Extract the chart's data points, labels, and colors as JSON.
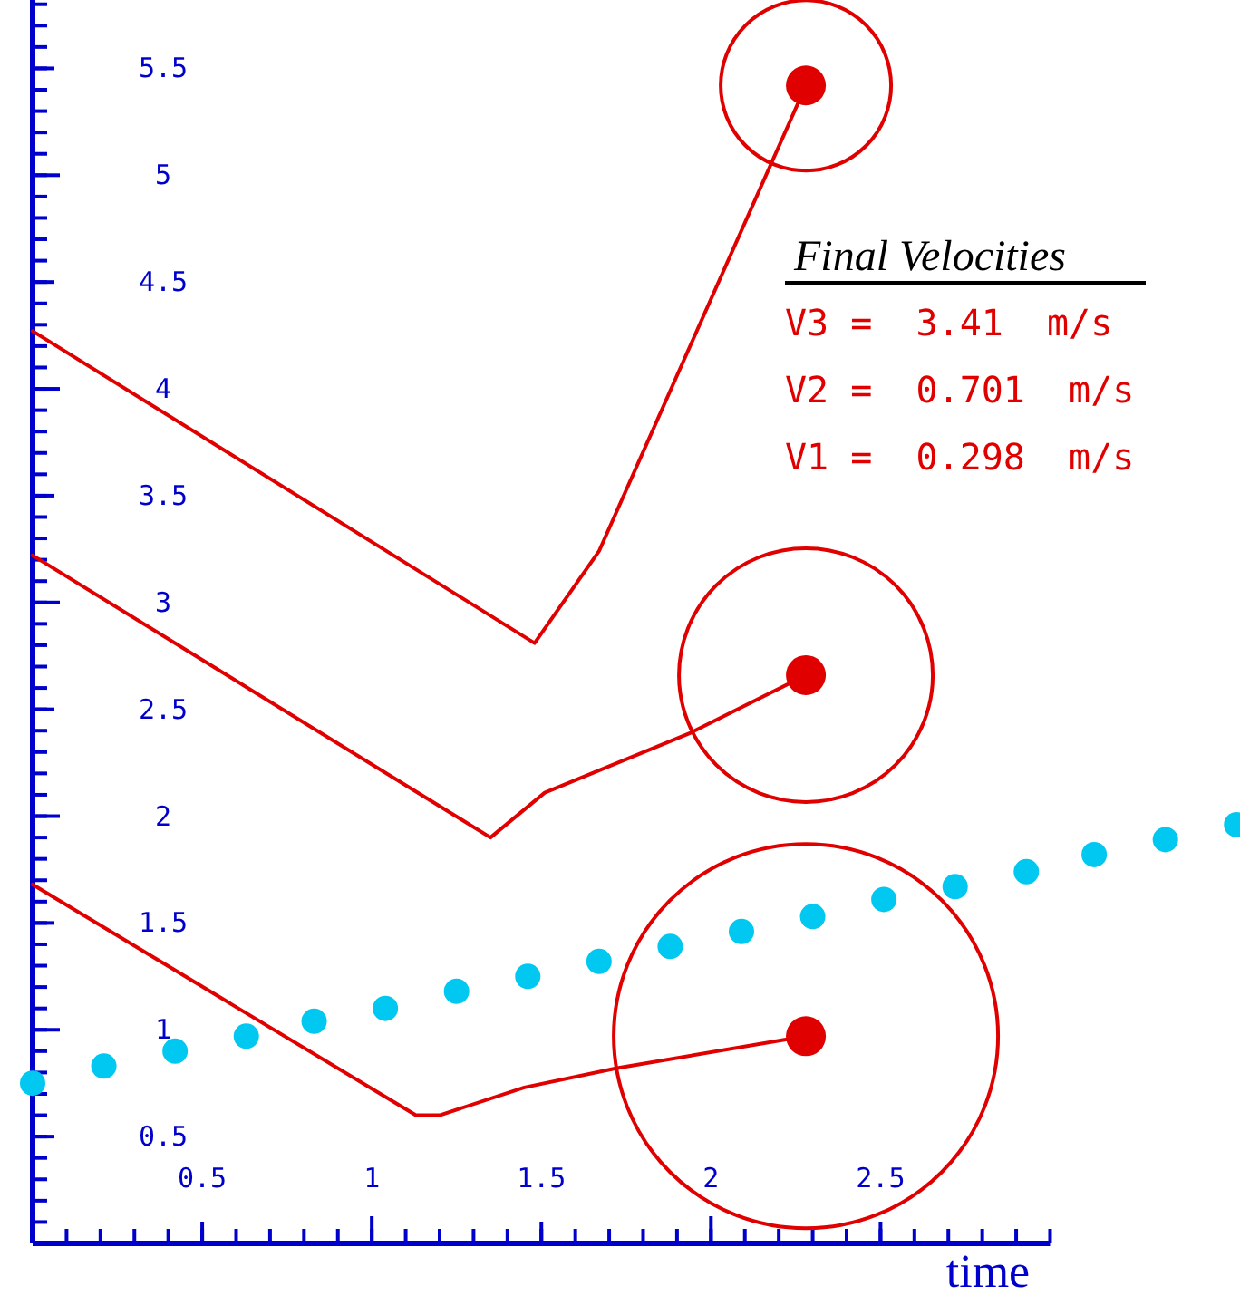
{
  "chart_data": {
    "type": "line",
    "xlabel": "time",
    "xlim": [
      0,
      3.56
    ],
    "ylim": [
      0,
      5.82
    ],
    "xticks": [
      {
        "value": 0.5,
        "label": "0.5"
      },
      1,
      {
        "value": 1.5,
        "label": "1.5"
      },
      2,
      {
        "value": 2.5,
        "label": "2.5"
      }
    ],
    "yticks": [
      {
        "value": 0.5,
        "label": "0.5"
      },
      1,
      {
        "value": 1.5,
        "label": "1.5"
      },
      2,
      {
        "value": 2.5,
        "label": "2.5"
      },
      3,
      {
        "value": 3.5,
        "label": "3.5"
      },
      4,
      {
        "value": 4.5,
        "label": "4.5"
      },
      5,
      {
        "value": 5.5,
        "label": "5.5"
      }
    ],
    "grid": false,
    "marker": "none",
    "line_style": "solid",
    "annotations": [
      "Final Velocities",
      "V3 =  3.41  m/s",
      "V2 =  0.701  m/s",
      "V1 =  0.298  m/s"
    ],
    "series": [
      {
        "color": "#e00000",
        "x": [
          0,
          1.13,
          1.2,
          1.45,
          1.72,
          2.28
        ],
        "values": [
          1.68,
          0.6,
          0.6,
          0.73,
          0.82,
          0.97
        ]
      },
      {
        "color": "#e00000",
        "x": [
          0,
          1.35,
          1.51,
          1.94,
          2.28
        ],
        "values": [
          3.22,
          1.9,
          2.11,
          2.39,
          2.66
        ]
      },
      {
        "color": "#e00000",
        "x": [
          0,
          1.48,
          1.67,
          2.28
        ],
        "values": [
          4.27,
          2.81,
          3.24,
          5.42
        ]
      },
      {
        "type": "scatter",
        "marker": "circle",
        "color": "#00c8f0",
        "x": [
          0,
          0.21,
          0.42,
          0.63,
          0.83,
          1.04,
          1.25,
          1.46,
          1.67,
          1.88,
          2.09,
          2.3,
          2.51,
          2.72,
          2.93,
          3.13,
          3.34,
          3.55
        ],
        "values": [
          0.75,
          0.83,
          0.9,
          0.97,
          1.04,
          1.1,
          1.18,
          1.25,
          1.32,
          1.39,
          1.46,
          1.53,
          1.61,
          1.67,
          1.74,
          1.82,
          1.89,
          1.96
        ]
      }
    ]
  }
}
